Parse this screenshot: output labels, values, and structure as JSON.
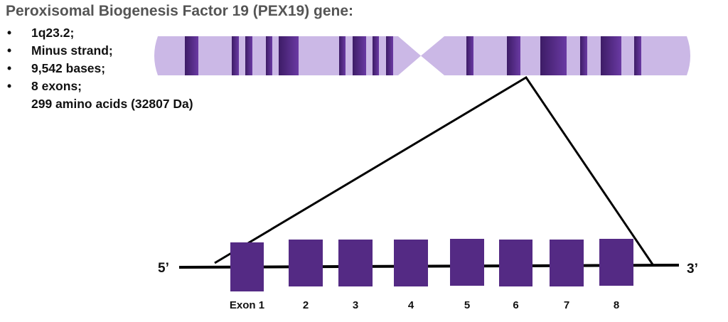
{
  "title": "Peroxisomal Biogenesis Factor 19 (PEX19) gene:",
  "facts": [
    "1q23.2;",
    "Minus strand;",
    "9,542 bases;",
    "8 exons;",
    "299 amino acids (32807 Da)"
  ],
  "gene": {
    "five_prime": "5’",
    "three_prime": "3’",
    "exon_labels": [
      "Exon 1",
      "2",
      "3",
      "4",
      "5",
      "6",
      "7",
      "8"
    ]
  },
  "colors": {
    "chromosome": "#cbb8e6",
    "band": "#5a2d8e",
    "exon": "#542a84",
    "line": "#000000"
  }
}
